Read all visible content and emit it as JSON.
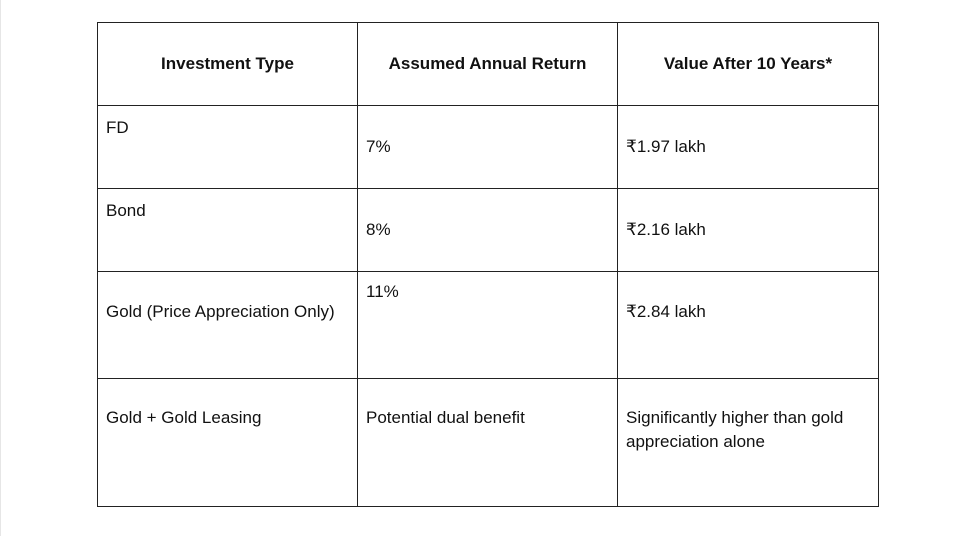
{
  "table": {
    "headers": [
      "Investment Type",
      "Assumed Annual Return",
      "Value After 10 Years*"
    ],
    "rows": [
      {
        "type": "FD",
        "return": "7%",
        "value": "₹1.97 lakh"
      },
      {
        "type": "Bond",
        "return": "8%",
        "value": "₹2.16 lakh"
      },
      {
        "type": "Gold (Price Appreciation Only)",
        "return": "11%",
        "value": "₹2.84 lakh"
      },
      {
        "type": "Gold + Gold Leasing",
        "return": "Potential dual benefit",
        "value": "Significantly higher than gold appreciation alone"
      }
    ]
  }
}
